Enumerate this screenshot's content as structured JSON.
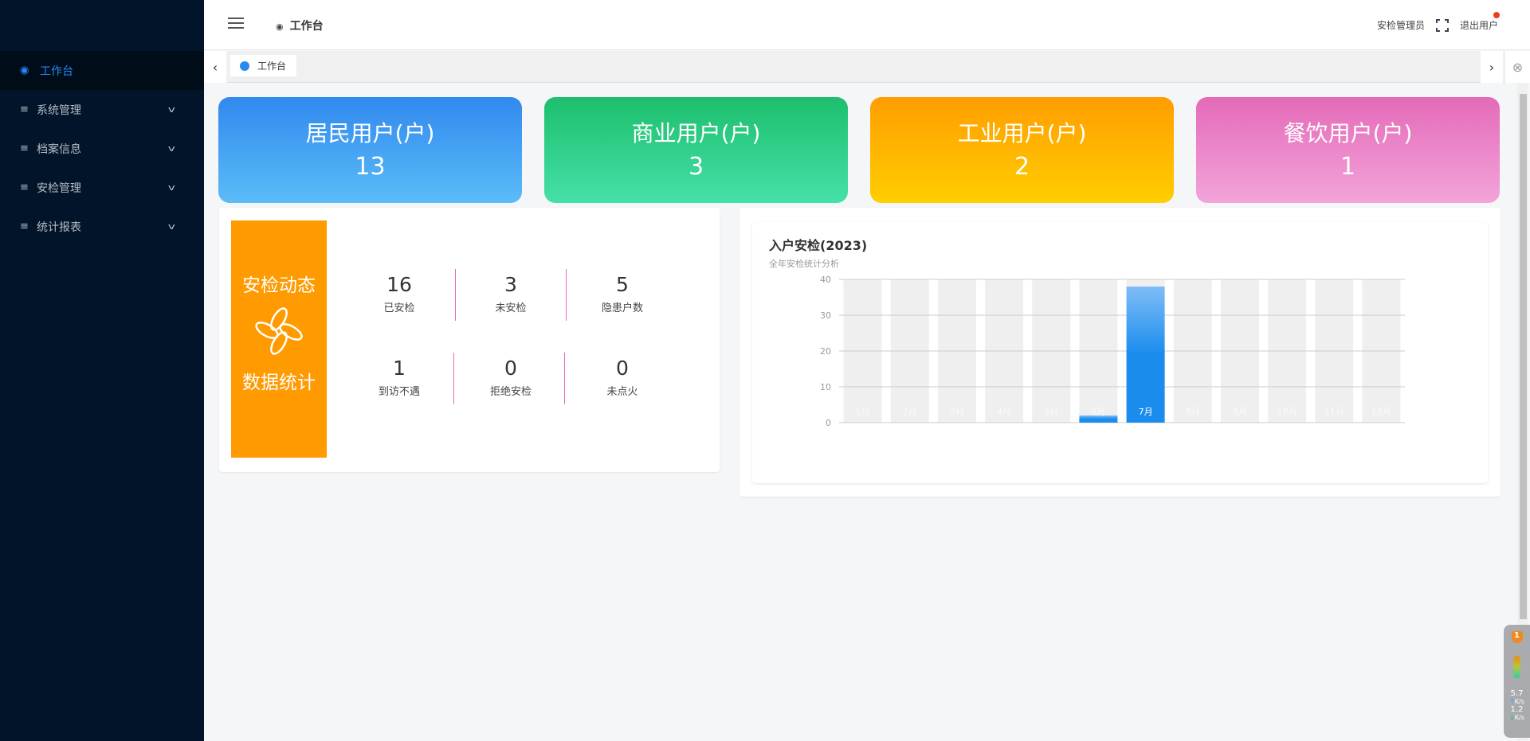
{
  "sidebar": {
    "items": [
      {
        "label": "工作台",
        "icon": "planet-icon",
        "active": true
      },
      {
        "label": "系统管理",
        "icon": "menu-icon"
      },
      {
        "label": "档案信息",
        "icon": "menu-icon"
      },
      {
        "label": "安检管理",
        "icon": "menu-icon"
      },
      {
        "label": "统计报表",
        "icon": "menu-icon"
      }
    ]
  },
  "header": {
    "title": "工作台",
    "user": "安检管理员",
    "logout": "退出用户"
  },
  "tabs": [
    {
      "label": "工作台"
    }
  ],
  "cards": [
    {
      "title": "居民用户(户)",
      "value": "13",
      "colors": [
        "#3189ee",
        "#5bbcf8"
      ]
    },
    {
      "title": "商业用户(户)",
      "value": "3",
      "colors": [
        "#1dbf6d",
        "#45e0a8"
      ]
    },
    {
      "title": "工业用户(户)",
      "value": "2",
      "colors": [
        "#ff9d00",
        "#ffce00"
      ]
    },
    {
      "title": "餐饮用户(户)",
      "value": "1",
      "colors": [
        "#e46ab8",
        "#f3a4da"
      ]
    }
  ],
  "stats": {
    "side_top": "安检动态",
    "side_bottom": "数据统计",
    "items": [
      {
        "value": "16",
        "label": "已安检"
      },
      {
        "value": "3",
        "label": "未安检"
      },
      {
        "value": "5",
        "label": "隐患户数"
      },
      {
        "value": "1",
        "label": "到访不遇"
      },
      {
        "value": "0",
        "label": "拒绝安检"
      },
      {
        "value": "0",
        "label": "未点火"
      }
    ]
  },
  "chart_data": {
    "type": "bar",
    "title": "入户安检(2023)",
    "subtitle": "全年安检统计分析",
    "categories": [
      "1月",
      "2月",
      "3月",
      "4月",
      "5月",
      "6月",
      "7月",
      "8月",
      "9月",
      "10月",
      "11月",
      "12月"
    ],
    "values": [
      0,
      0,
      0,
      0,
      0,
      2,
      38,
      0,
      0,
      0,
      0,
      0
    ],
    "ylim": [
      0,
      40
    ],
    "yticks": [
      0,
      10,
      20,
      30,
      40
    ],
    "grid": true,
    "bar_color": "#1a8cee",
    "background_bar_color": "#efefef"
  },
  "widget": {
    "badge": "1",
    "up": "5.7",
    "down": "1.2",
    "unit": "K/s"
  }
}
